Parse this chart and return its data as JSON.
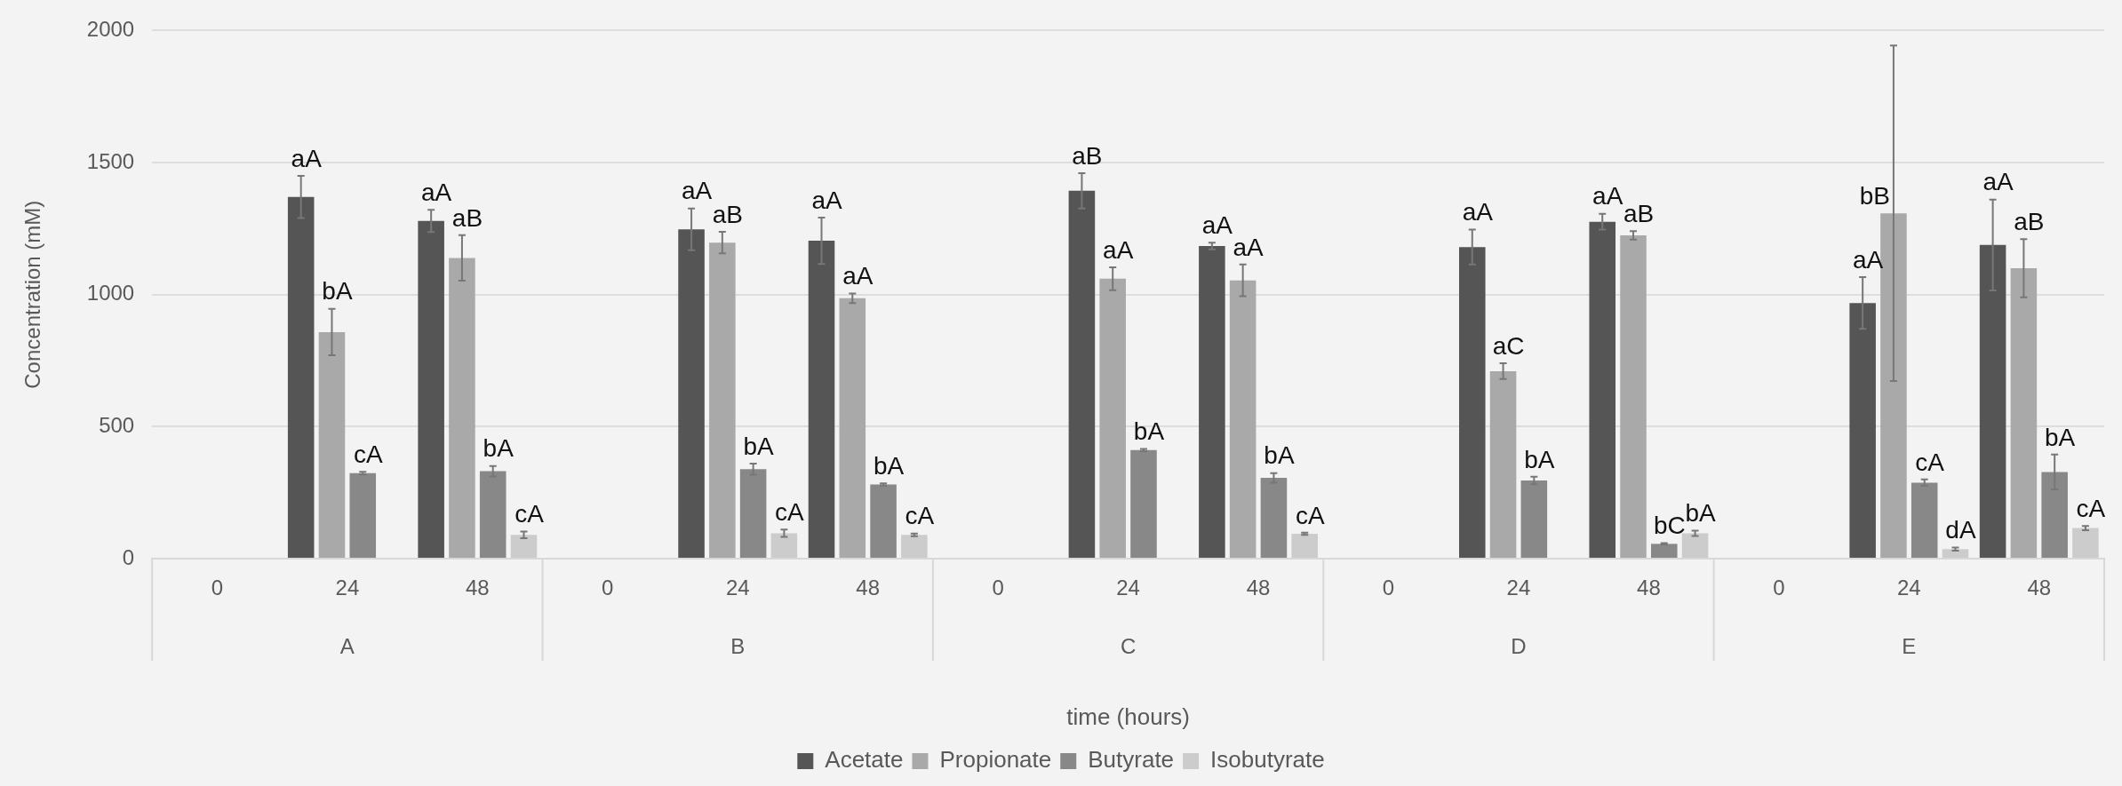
{
  "chart_data": {
    "type": "bar",
    "xlabel": "time (hours)",
    "ylabel": "Concentration (mM)",
    "categories": [
      "0",
      "24",
      "48",
      "0",
      "24",
      "48",
      "0",
      "24",
      "48",
      "0",
      "24",
      "48",
      "0",
      "24",
      "48"
    ],
    "annotations": [
      "A",
      "B",
      "C",
      "D",
      "E"
    ],
    "ylim": [
      0,
      2000
    ],
    "yticks": [
      0,
      500,
      1000,
      1500,
      2000
    ],
    "grid": "y",
    "legend": "bottom",
    "series": [
      {
        "name": "Acetate",
        "color": "#555555",
        "values": [
          null,
          1370,
          1279,
          null,
          1247,
          1204,
          null,
          1393,
          1184,
          null,
          1180,
          1276,
          null,
          968,
          1188
        ],
        "errors": [
          null,
          80,
          42,
          null,
          79,
          88,
          null,
          67,
          13,
          null,
          66,
          30,
          null,
          98,
          172
        ],
        "value_labels": [
          null,
          "aA",
          "aA",
          null,
          "aA",
          "aA",
          null,
          "aB",
          "aA",
          null,
          "aA",
          "aA",
          null,
          "aA",
          "aA"
        ]
      },
      {
        "name": "Propionate",
        "color": "#a9a9a9",
        "values": [
          null,
          858,
          1139,
          null,
          1197,
          986,
          null,
          1060,
          1054,
          null,
          710,
          1224,
          null,
          1308,
          1100
        ],
        "errors": [
          null,
          88,
          86,
          null,
          41,
          18,
          null,
          43,
          60,
          null,
          30,
          16,
          null,
          635,
          110
        ],
        "value_labels": [
          null,
          "bA",
          "aB",
          null,
          "aB",
          "aA",
          null,
          "aA",
          "aA",
          null,
          "aC",
          "aB",
          null,
          "bB",
          "aB"
        ]
      },
      {
        "name": "Butyrate",
        "color": "#888888",
        "values": [
          null,
          324,
          331,
          null,
          339,
          281,
          null,
          411,
          306,
          null,
          296,
          56,
          null,
          288,
          328
        ],
        "errors": [
          null,
          5,
          20,
          null,
          21,
          4,
          null,
          4,
          18,
          null,
          14,
          3,
          null,
          12,
          66
        ],
        "value_labels": [
          null,
          "cA",
          "bA",
          null,
          "bA",
          "bA",
          null,
          "bA",
          "bA",
          null,
          "bA",
          "bC",
          null,
          "cA",
          "bA"
        ]
      },
      {
        "name": "Isobutyrate",
        "color": "#cccccc",
        "values": [
          null,
          null,
          90,
          null,
          96,
          90,
          null,
          null,
          94,
          null,
          null,
          96,
          null,
          36,
          116
        ],
        "errors": [
          null,
          null,
          13,
          null,
          14,
          5,
          null,
          null,
          4,
          null,
          null,
          10,
          null,
          6,
          8
        ],
        "value_labels": [
          null,
          null,
          "cA",
          null,
          "cA",
          "cA",
          null,
          null,
          "cA",
          null,
          null,
          "bA",
          null,
          "dA",
          "cA"
        ]
      }
    ]
  }
}
